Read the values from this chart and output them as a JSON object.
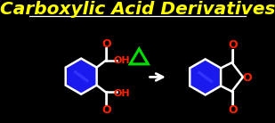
{
  "title": "Carboxylic Acid Derivatives",
  "title_color": "#FFFF00",
  "title_fontsize": 14.5,
  "bg_color": "#000000",
  "line_color": "#FFFFFF",
  "blue_fill": "#1a1aee",
  "red_color": "#FF2200",
  "green_color": "#00DD00",
  "arrow_color": "#FFFFFF",
  "lw": 1.8
}
